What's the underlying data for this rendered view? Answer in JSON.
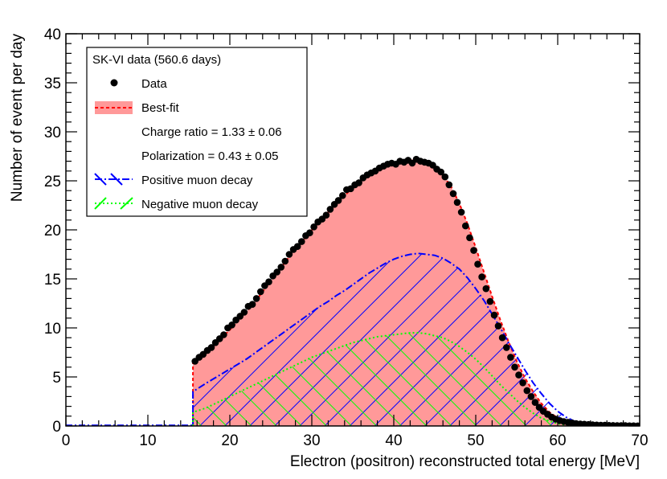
{
  "chart_data": {
    "type": "histogram",
    "xlabel": "Electron (positron) reconstructed total energy [MeV]",
    "ylabel": "Number of event per day",
    "xlim": [
      0,
      70
    ],
    "ylim": [
      0,
      40
    ],
    "x_ticks": [
      0,
      10,
      20,
      30,
      40,
      50,
      60,
      70
    ],
    "y_ticks": [
      0,
      5,
      10,
      15,
      20,
      25,
      30,
      35,
      40
    ],
    "legend": {
      "header": "SK-VI data (560.6 days)",
      "entries": [
        {
          "key": "data",
          "label": "Data"
        },
        {
          "key": "bestfit",
          "label": "Best-fit"
        },
        {
          "key": "charge_ratio",
          "label": "Charge ratio = 1.33 ± 0.06"
        },
        {
          "key": "polarization",
          "label": "Polarization = 0.43 ± 0.05"
        },
        {
          "key": "positive",
          "label": "Positive muon decay"
        },
        {
          "key": "negative",
          "label": "Negative muon decay"
        }
      ]
    },
    "colors": {
      "bestfit_fill": "#ff9999",
      "bestfit_line": "#ff0000",
      "positive": "#0000ff",
      "negative": "#00ff00",
      "data": "#000000"
    },
    "bin_width": 0.5,
    "bin_start": 15.5,
    "data_points": [
      [
        15.75,
        6.6
      ],
      [
        16.25,
        7.0
      ],
      [
        16.75,
        7.3
      ],
      [
        17.25,
        7.7
      ],
      [
        17.75,
        8.0
      ],
      [
        18.25,
        8.5
      ],
      [
        18.75,
        8.9
      ],
      [
        19.25,
        9.3
      ],
      [
        19.75,
        10.0
      ],
      [
        20.25,
        10.3
      ],
      [
        20.75,
        10.8
      ],
      [
        21.25,
        11.2
      ],
      [
        21.75,
        11.6
      ],
      [
        22.25,
        12.2
      ],
      [
        22.75,
        12.4
      ],
      [
        23.25,
        13.0
      ],
      [
        23.75,
        13.7
      ],
      [
        24.25,
        14.3
      ],
      [
        24.75,
        14.7
      ],
      [
        25.25,
        15.3
      ],
      [
        25.75,
        15.7
      ],
      [
        26.25,
        16.2
      ],
      [
        26.75,
        16.8
      ],
      [
        27.25,
        17.5
      ],
      [
        27.75,
        18.0
      ],
      [
        28.25,
        18.3
      ],
      [
        28.75,
        18.8
      ],
      [
        29.25,
        19.4
      ],
      [
        29.75,
        19.7
      ],
      [
        30.25,
        20.3
      ],
      [
        30.75,
        20.8
      ],
      [
        31.25,
        21.1
      ],
      [
        31.75,
        21.5
      ],
      [
        32.25,
        22.1
      ],
      [
        32.75,
        22.6
      ],
      [
        33.25,
        23.0
      ],
      [
        33.75,
        23.5
      ],
      [
        34.25,
        24.1
      ],
      [
        34.75,
        24.2
      ],
      [
        35.25,
        24.6
      ],
      [
        35.75,
        24.8
      ],
      [
        36.25,
        25.3
      ],
      [
        36.75,
        25.6
      ],
      [
        37.25,
        25.8
      ],
      [
        37.75,
        26.0
      ],
      [
        38.25,
        26.3
      ],
      [
        38.75,
        26.5
      ],
      [
        39.25,
        26.7
      ],
      [
        39.75,
        26.8
      ],
      [
        40.25,
        26.7
      ],
      [
        40.75,
        27.0
      ],
      [
        41.25,
        26.9
      ],
      [
        41.75,
        27.1
      ],
      [
        42.25,
        26.8
      ],
      [
        42.75,
        27.2
      ],
      [
        43.25,
        27.0
      ],
      [
        43.75,
        26.9
      ],
      [
        44.25,
        26.8
      ],
      [
        44.75,
        26.6
      ],
      [
        45.25,
        26.2
      ],
      [
        45.75,
        25.9
      ],
      [
        46.25,
        25.4
      ],
      [
        46.75,
        24.6
      ],
      [
        47.25,
        23.7
      ],
      [
        47.75,
        22.8
      ],
      [
        48.25,
        21.8
      ],
      [
        48.75,
        20.4
      ],
      [
        49.25,
        19.2
      ],
      [
        49.75,
        17.9
      ],
      [
        50.25,
        16.5
      ],
      [
        50.75,
        15.2
      ],
      [
        51.25,
        14.0
      ],
      [
        51.75,
        12.7
      ],
      [
        52.25,
        11.3
      ],
      [
        52.75,
        10.2
      ],
      [
        53.25,
        9.0
      ],
      [
        53.75,
        8.0
      ],
      [
        54.25,
        7.0
      ],
      [
        54.75,
        6.0
      ],
      [
        55.25,
        5.2
      ],
      [
        55.75,
        4.4
      ],
      [
        56.25,
        3.6
      ],
      [
        56.75,
        3.0
      ],
      [
        57.25,
        2.4
      ],
      [
        57.75,
        1.9
      ],
      [
        58.25,
        1.5
      ],
      [
        58.75,
        1.2
      ],
      [
        59.25,
        0.9
      ],
      [
        59.75,
        0.7
      ],
      [
        60.25,
        0.55
      ],
      [
        60.75,
        0.45
      ],
      [
        61.25,
        0.38
      ],
      [
        61.75,
        0.3
      ],
      [
        62.25,
        0.25
      ],
      [
        62.75,
        0.2
      ],
      [
        63.25,
        0.18
      ],
      [
        63.75,
        0.15
      ],
      [
        64.25,
        0.12
      ],
      [
        64.75,
        0.1
      ],
      [
        65.25,
        0.08
      ],
      [
        65.75,
        0.07
      ],
      [
        66.25,
        0.06
      ],
      [
        66.75,
        0.05
      ],
      [
        67.25,
        0.04
      ],
      [
        67.75,
        0.03
      ],
      [
        68.25,
        0.03
      ],
      [
        68.75,
        0.02
      ],
      [
        69.25,
        0.02
      ],
      [
        69.75,
        0.01
      ]
    ],
    "bestfit_curve": [
      [
        15.5,
        6.6
      ],
      [
        17,
        7.4
      ],
      [
        18,
        8.2
      ],
      [
        19,
        9.0
      ],
      [
        20,
        9.8
      ],
      [
        21,
        10.7
      ],
      [
        22,
        11.6
      ],
      [
        23,
        12.6
      ],
      [
        24,
        13.7
      ],
      [
        25,
        14.8
      ],
      [
        26,
        15.9
      ],
      [
        27,
        17.0
      ],
      [
        28,
        18.0
      ],
      [
        29,
        19.0
      ],
      [
        30,
        20.0
      ],
      [
        31,
        20.9
      ],
      [
        32,
        21.8
      ],
      [
        33,
        22.7
      ],
      [
        34,
        23.5
      ],
      [
        35,
        24.3
      ],
      [
        36,
        25.0
      ],
      [
        37,
        25.6
      ],
      [
        38,
        26.1
      ],
      [
        39,
        26.5
      ],
      [
        40,
        26.8
      ],
      [
        41,
        27.0
      ],
      [
        42,
        27.1
      ],
      [
        43,
        27.0
      ],
      [
        44,
        26.8
      ],
      [
        45,
        26.4
      ],
      [
        46,
        25.6
      ],
      [
        47,
        24.4
      ],
      [
        48,
        22.7
      ],
      [
        49,
        20.6
      ],
      [
        50,
        18.2
      ],
      [
        51,
        15.7
      ],
      [
        52,
        13.2
      ],
      [
        53,
        10.8
      ],
      [
        54,
        8.6
      ],
      [
        55,
        6.6
      ],
      [
        56,
        4.9
      ],
      [
        57,
        3.5
      ],
      [
        58,
        2.3
      ],
      [
        59,
        1.4
      ],
      [
        60,
        0.8
      ],
      [
        61,
        0.4
      ],
      [
        62,
        0.2
      ],
      [
        63,
        0.1
      ],
      [
        64,
        0.05
      ],
      [
        65,
        0.03
      ],
      [
        66,
        0.02
      ],
      [
        67,
        0.01
      ],
      [
        68,
        0.0
      ]
    ],
    "positive_curve": [
      [
        15.5,
        3.5
      ],
      [
        17,
        4.3
      ],
      [
        18,
        4.8
      ],
      [
        19,
        5.3
      ],
      [
        20,
        5.8
      ],
      [
        21,
        6.3
      ],
      [
        22,
        6.8
      ],
      [
        23,
        7.4
      ],
      [
        24,
        8.0
      ],
      [
        25,
        8.6
      ],
      [
        26,
        9.2
      ],
      [
        27,
        9.8
      ],
      [
        28,
        10.4
      ],
      [
        29,
        11.0
      ],
      [
        30,
        11.6
      ],
      [
        31,
        12.2
      ],
      [
        32,
        12.7
      ],
      [
        33,
        13.3
      ],
      [
        34,
        13.8
      ],
      [
        35,
        14.4
      ],
      [
        36,
        15.0
      ],
      [
        37,
        15.6
      ],
      [
        38,
        16.1
      ],
      [
        39,
        16.6
      ],
      [
        40,
        17.0
      ],
      [
        41,
        17.3
      ],
      [
        42,
        17.5
      ],
      [
        43,
        17.6
      ],
      [
        44,
        17.5
      ],
      [
        45,
        17.4
      ],
      [
        46,
        17.1
      ],
      [
        47,
        16.6
      ],
      [
        48,
        16.0
      ],
      [
        49,
        15.1
      ],
      [
        50,
        14.0
      ],
      [
        51,
        12.8
      ],
      [
        52,
        11.4
      ],
      [
        53,
        10.0
      ],
      [
        54,
        8.5
      ],
      [
        55,
        7.1
      ],
      [
        56,
        5.7
      ],
      [
        57,
        4.4
      ],
      [
        58,
        3.3
      ],
      [
        59,
        2.3
      ],
      [
        60,
        1.5
      ],
      [
        61,
        0.9
      ],
      [
        62,
        0.5
      ],
      [
        63,
        0.25
      ],
      [
        64,
        0.1
      ],
      [
        65,
        0.05
      ],
      [
        66,
        0.02
      ],
      [
        67,
        0.0
      ]
    ],
    "negative_curve": [
      [
        15.5,
        1.4
      ],
      [
        17,
        1.8
      ],
      [
        18,
        2.2
      ],
      [
        19,
        2.6
      ],
      [
        20,
        3.0
      ],
      [
        21,
        3.4
      ],
      [
        22,
        3.8
      ],
      [
        23,
        4.2
      ],
      [
        24,
        4.6
      ],
      [
        25,
        5.0
      ],
      [
        26,
        5.4
      ],
      [
        27,
        5.8
      ],
      [
        28,
        6.2
      ],
      [
        29,
        6.6
      ],
      [
        30,
        7.0
      ],
      [
        31,
        7.3
      ],
      [
        32,
        7.6
      ],
      [
        33,
        7.9
      ],
      [
        34,
        8.2
      ],
      [
        35,
        8.5
      ],
      [
        36,
        8.7
      ],
      [
        37,
        8.9
      ],
      [
        38,
        9.1
      ],
      [
        39,
        9.2
      ],
      [
        40,
        9.3
      ],
      [
        41,
        9.4
      ],
      [
        42,
        9.5
      ],
      [
        43,
        9.5
      ],
      [
        44,
        9.4
      ],
      [
        45,
        9.2
      ],
      [
        46,
        9.0
      ],
      [
        47,
        8.6
      ],
      [
        48,
        8.1
      ],
      [
        49,
        7.5
      ],
      [
        50,
        6.8
      ],
      [
        51,
        6.0
      ],
      [
        52,
        5.1
      ],
      [
        53,
        4.2
      ],
      [
        54,
        3.4
      ],
      [
        55,
        2.6
      ],
      [
        56,
        1.9
      ],
      [
        57,
        1.3
      ],
      [
        58,
        0.8
      ],
      [
        59,
        0.5
      ],
      [
        60,
        0.25
      ],
      [
        61,
        0.1
      ],
      [
        62,
        0.05
      ],
      [
        63,
        0.0
      ]
    ]
  }
}
